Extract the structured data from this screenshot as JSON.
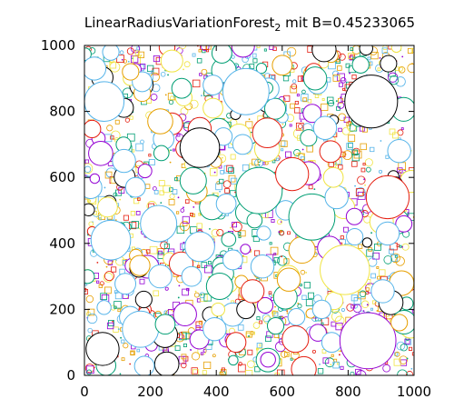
{
  "chart_data": {
    "type": "scatter",
    "title": {
      "text": "LinearRadiusVariationForest",
      "subscript": "2",
      "suffix": " mit B=0.45233065"
    },
    "xlabel": "",
    "ylabel": "",
    "xlim": [
      0,
      1000
    ],
    "ylim": [
      0,
      1000
    ],
    "xticks": [
      "0",
      "200",
      "400",
      "600",
      "800",
      "1000"
    ],
    "yticks": [
      "0",
      "200",
      "400",
      "600",
      "800",
      "1000"
    ],
    "grid": false,
    "legend": "none",
    "colors": [
      "#000000",
      "#9400d3",
      "#009e73",
      "#56b4e9",
      "#e69f00",
      "#e51e10",
      "#f0e442"
    ],
    "large_circles": [
      {
        "x": 55,
        "y": 80,
        "r": 50,
        "color": "#000000"
      },
      {
        "x": 170,
        "y": 140,
        "r": 55,
        "color": "#56b4e9"
      },
      {
        "x": 245,
        "y": 155,
        "r": 30,
        "color": "#009e73"
      },
      {
        "x": 305,
        "y": 185,
        "r": 35,
        "color": "#9400d3"
      },
      {
        "x": 395,
        "y": 140,
        "r": 35,
        "color": "#56b4e9"
      },
      {
        "x": 460,
        "y": 100,
        "r": 30,
        "color": "#e51e10"
      },
      {
        "x": 490,
        "y": 200,
        "r": 28,
        "color": "#000000"
      },
      {
        "x": 580,
        "y": 150,
        "r": 25,
        "color": "#009e73"
      },
      {
        "x": 640,
        "y": 110,
        "r": 40,
        "color": "#e51e10"
      },
      {
        "x": 750,
        "y": 100,
        "r": 30,
        "color": "#56b4e9"
      },
      {
        "x": 860,
        "y": 105,
        "r": 85,
        "color": "#9400d3"
      },
      {
        "x": 955,
        "y": 160,
        "r": 25,
        "color": "#e69f00"
      },
      {
        "x": 80,
        "y": 410,
        "r": 60,
        "color": "#56b4e9"
      },
      {
        "x": 230,
        "y": 300,
        "r": 35,
        "color": "#56b4e9"
      },
      {
        "x": 325,
        "y": 300,
        "r": 30,
        "color": "#56b4e9"
      },
      {
        "x": 410,
        "y": 270,
        "r": 40,
        "color": "#009e73"
      },
      {
        "x": 510,
        "y": 255,
        "r": 35,
        "color": "#e51e10"
      },
      {
        "x": 620,
        "y": 290,
        "r": 35,
        "color": "#e69f00"
      },
      {
        "x": 720,
        "y": 200,
        "r": 28,
        "color": "#56b4e9"
      },
      {
        "x": 790,
        "y": 320,
        "r": 75,
        "color": "#f0e442"
      },
      {
        "x": 905,
        "y": 255,
        "r": 35,
        "color": "#56b4e9"
      },
      {
        "x": 225,
        "y": 460,
        "r": 55,
        "color": "#56b4e9"
      },
      {
        "x": 350,
        "y": 390,
        "r": 45,
        "color": "#56b4e9"
      },
      {
        "x": 450,
        "y": 350,
        "r": 30,
        "color": "#56b4e9"
      },
      {
        "x": 540,
        "y": 330,
        "r": 35,
        "color": "#56b4e9"
      },
      {
        "x": 660,
        "y": 380,
        "r": 40,
        "color": "#e69f00"
      },
      {
        "x": 690,
        "y": 480,
        "r": 70,
        "color": "#009e73"
      },
      {
        "x": 820,
        "y": 420,
        "r": 25,
        "color": "#56b4e9"
      },
      {
        "x": 920,
        "y": 430,
        "r": 35,
        "color": "#56b4e9"
      },
      {
        "x": 70,
        "y": 510,
        "r": 30,
        "color": "#f0e442"
      },
      {
        "x": 155,
        "y": 570,
        "r": 30,
        "color": "#56b4e9"
      },
      {
        "x": 330,
        "y": 590,
        "r": 40,
        "color": "#009e73"
      },
      {
        "x": 430,
        "y": 520,
        "r": 30,
        "color": "#56b4e9"
      },
      {
        "x": 530,
        "y": 560,
        "r": 70,
        "color": "#009e73"
      },
      {
        "x": 630,
        "y": 610,
        "r": 50,
        "color": "#e51e10"
      },
      {
        "x": 765,
        "y": 540,
        "r": 35,
        "color": "#56b4e9"
      },
      {
        "x": 920,
        "y": 540,
        "r": 65,
        "color": "#e51e10"
      },
      {
        "x": 755,
        "y": 600,
        "r": 30,
        "color": "#f0e442"
      },
      {
        "x": 120,
        "y": 650,
        "r": 35,
        "color": "#56b4e9"
      },
      {
        "x": 350,
        "y": 690,
        "r": 60,
        "color": "#000000"
      },
      {
        "x": 480,
        "y": 700,
        "r": 30,
        "color": "#56b4e9"
      },
      {
        "x": 555,
        "y": 735,
        "r": 45,
        "color": "#e51e10"
      },
      {
        "x": 680,
        "y": 720,
        "r": 25,
        "color": "#009e73"
      },
      {
        "x": 870,
        "y": 830,
        "r": 80,
        "color": "#000000"
      },
      {
        "x": 955,
        "y": 680,
        "r": 35,
        "color": "#56b4e9"
      },
      {
        "x": 60,
        "y": 830,
        "r": 60,
        "color": "#56b4e9"
      },
      {
        "x": 175,
        "y": 890,
        "r": 30,
        "color": "#56b4e9"
      },
      {
        "x": 230,
        "y": 770,
        "r": 38,
        "color": "#e69f00"
      },
      {
        "x": 390,
        "y": 880,
        "r": 30,
        "color": "#56b4e9"
      },
      {
        "x": 490,
        "y": 860,
        "r": 70,
        "color": "#56b4e9"
      },
      {
        "x": 600,
        "y": 940,
        "r": 30,
        "color": "#e69f00"
      },
      {
        "x": 700,
        "y": 900,
        "r": 35,
        "color": "#009e73"
      },
      {
        "x": 730,
        "y": 750,
        "r": 35,
        "color": "#56b4e9"
      },
      {
        "x": 30,
        "y": 930,
        "r": 35,
        "color": "#56b4e9"
      },
      {
        "x": 80,
        "y": 980,
        "r": 25,
        "color": "#56b4e9"
      },
      {
        "x": 390,
        "y": 810,
        "r": 30,
        "color": "#f0e442"
      },
      {
        "x": 295,
        "y": 870,
        "r": 30,
        "color": "#009e73"
      },
      {
        "x": 140,
        "y": 920,
        "r": 25,
        "color": "#e69f00"
      },
      {
        "x": 180,
        "y": 230,
        "r": 25,
        "color": "#000000"
      }
    ]
  }
}
